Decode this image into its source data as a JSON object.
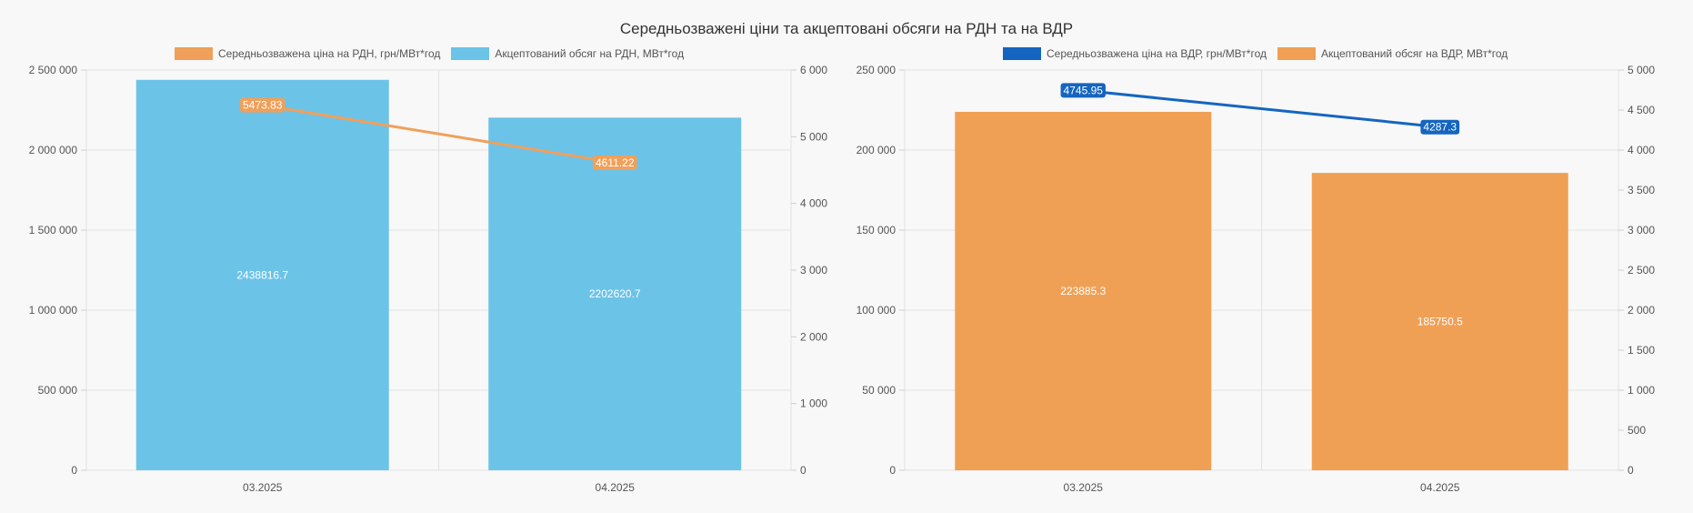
{
  "title": "Середньозважені ціни та акцептовані обсяги на РДН та на ВДР",
  "chart_data": [
    {
      "type": "bar",
      "categories": [
        "03.2025",
        "04.2025"
      ],
      "series": [
        {
          "name": "Середньозважена ціна на РДН, грн/МВт*год",
          "kind": "line",
          "axis": "right",
          "color": "#f0a05a",
          "values": [
            5473.83,
            4611.22
          ],
          "labels": [
            "5473.83",
            "4611.22"
          ]
        },
        {
          "name": "Акцептований обсяг на РДН, МВт*год",
          "kind": "bar",
          "axis": "left",
          "color": "#6cc3e8",
          "values": [
            2438816.7,
            2202620.7
          ],
          "labels": [
            "2438816.7",
            "2202620.7"
          ]
        }
      ],
      "left_axis": {
        "ylim": [
          0,
          2500000
        ],
        "ticks": [
          "0",
          "500 000",
          "1 000 000",
          "1 500 000",
          "2 000 000",
          "2 500 000"
        ]
      },
      "right_axis": {
        "ylim": [
          0,
          6000
        ],
        "ticks": [
          "0",
          "1 000",
          "2 000",
          "3 000",
          "4 000",
          "5 000",
          "6 000"
        ]
      },
      "grid": true,
      "legend": "top-center"
    },
    {
      "type": "bar",
      "categories": [
        "03.2025",
        "04.2025"
      ],
      "series": [
        {
          "name": "Середньозважена ціна на ВДР, грн/МВт*год",
          "kind": "line",
          "axis": "right",
          "color": "#1565c0",
          "values": [
            4745.95,
            4287.3
          ],
          "labels": [
            "4745.95",
            "4287.3"
          ]
        },
        {
          "name": "Акцептований обсяг на ВДР, МВт*год",
          "kind": "bar",
          "axis": "left",
          "color": "#f0a055",
          "values": [
            223885.3,
            185750.5
          ],
          "labels": [
            "223885.3",
            "185750.5"
          ]
        }
      ],
      "left_axis": {
        "ylim": [
          0,
          250000
        ],
        "ticks": [
          "0",
          "50 000",
          "100 000",
          "150 000",
          "200 000",
          "250 000"
        ]
      },
      "right_axis": {
        "ylim": [
          0,
          5000
        ],
        "ticks": [
          "0",
          "500",
          "1 000",
          "1 500",
          "2 000",
          "2 500",
          "3 000",
          "3 500",
          "4 000",
          "4 500",
          "5 000"
        ]
      },
      "grid": true,
      "legend": "top-center"
    }
  ]
}
